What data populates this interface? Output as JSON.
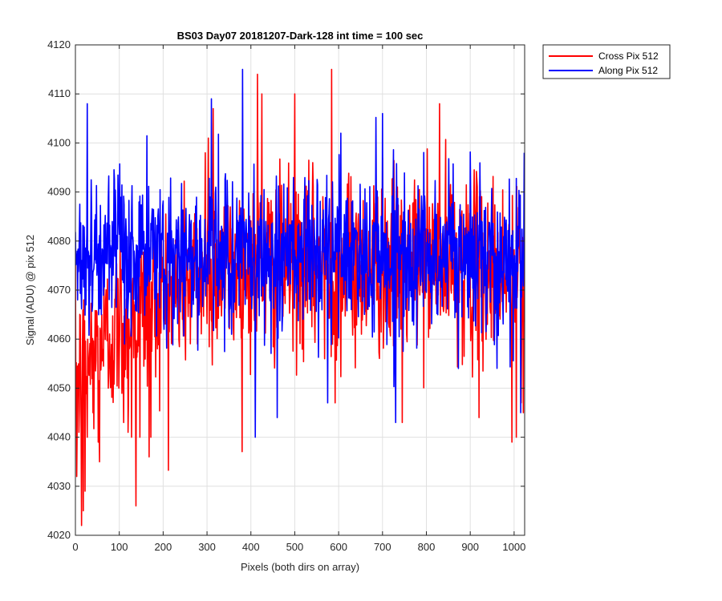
{
  "chart_data": {
    "type": "line",
    "title": "BS03 Day07 20181207-Dark-128 int time = 100 sec",
    "xlabel": "Pixels (both dirs on array)",
    "ylabel": "Signal (ADU) @ pix 512",
    "xlim": [
      0,
      1024
    ],
    "ylim": [
      4020,
      4120
    ],
    "xticks": [
      0,
      100,
      200,
      300,
      400,
      500,
      600,
      700,
      800,
      900,
      1000
    ],
    "yticks": [
      4020,
      4030,
      4040,
      4050,
      4060,
      4070,
      4080,
      4090,
      4100,
      4110,
      4120
    ],
    "grid": true,
    "legend_position": "outside top-right",
    "series": [
      {
        "name": "Cross Pix 512",
        "color": "#ff0000",
        "x_range": [
          0,
          1023
        ],
        "mean_profile": [
          [
            0,
            4052
          ],
          [
            50,
            4058
          ],
          [
            100,
            4063
          ],
          [
            150,
            4066
          ],
          [
            200,
            4069
          ],
          [
            300,
            4074
          ],
          [
            400,
            4075
          ],
          [
            500,
            4075
          ],
          [
            600,
            4075
          ],
          [
            700,
            4075
          ],
          [
            800,
            4076
          ],
          [
            900,
            4075
          ],
          [
            1023,
            4073
          ]
        ],
        "noise_sd": 9,
        "key_points": [
          [
            3,
            4032
          ],
          [
            8,
            4041
          ],
          [
            14,
            4022
          ],
          [
            18,
            4025
          ],
          [
            22,
            4029
          ],
          [
            27,
            4040
          ],
          [
            40,
            4045
          ],
          [
            52,
            4039
          ],
          [
            55,
            4035
          ],
          [
            60,
            4065
          ],
          [
            75,
            4050
          ],
          [
            110,
            4043
          ],
          [
            120,
            4041
          ],
          [
            128,
            4040
          ],
          [
            138,
            4026
          ],
          [
            147,
            4040
          ],
          [
            168,
            4036
          ],
          [
            172,
            4040
          ],
          [
            296,
            4098
          ],
          [
            303,
            4101
          ],
          [
            314,
            4107
          ],
          [
            415,
            4114
          ],
          [
            425,
            4110
          ],
          [
            500,
            4110
          ],
          [
            568,
            4056
          ],
          [
            584,
            4115
          ],
          [
            592,
            4047
          ],
          [
            700,
            4097
          ],
          [
            745,
            4043
          ],
          [
            830,
            4108
          ],
          [
            920,
            4044
          ],
          [
            995,
            4039
          ],
          [
            1005,
            4040
          ],
          [
            1016,
            4047
          ],
          [
            1021,
            4045
          ]
        ]
      },
      {
        "name": "Along Pix 512",
        "color": "#0000ff",
        "x_range": [
          0,
          1023
        ],
        "mean_profile": [
          [
            0,
            4077
          ],
          [
            1023,
            4077
          ]
        ],
        "noise_sd": 8,
        "key_points": [
          [
            27,
            4108
          ],
          [
            50,
            4075
          ],
          [
            310,
            4109
          ],
          [
            381,
            4115
          ],
          [
            410,
            4040
          ],
          [
            460,
            4044
          ],
          [
            575,
            4047
          ],
          [
            605,
            4102
          ],
          [
            700,
            4106
          ],
          [
            730,
            4043
          ],
          [
            1015,
            4045
          ],
          [
            1023,
            4098
          ]
        ]
      }
    ]
  }
}
